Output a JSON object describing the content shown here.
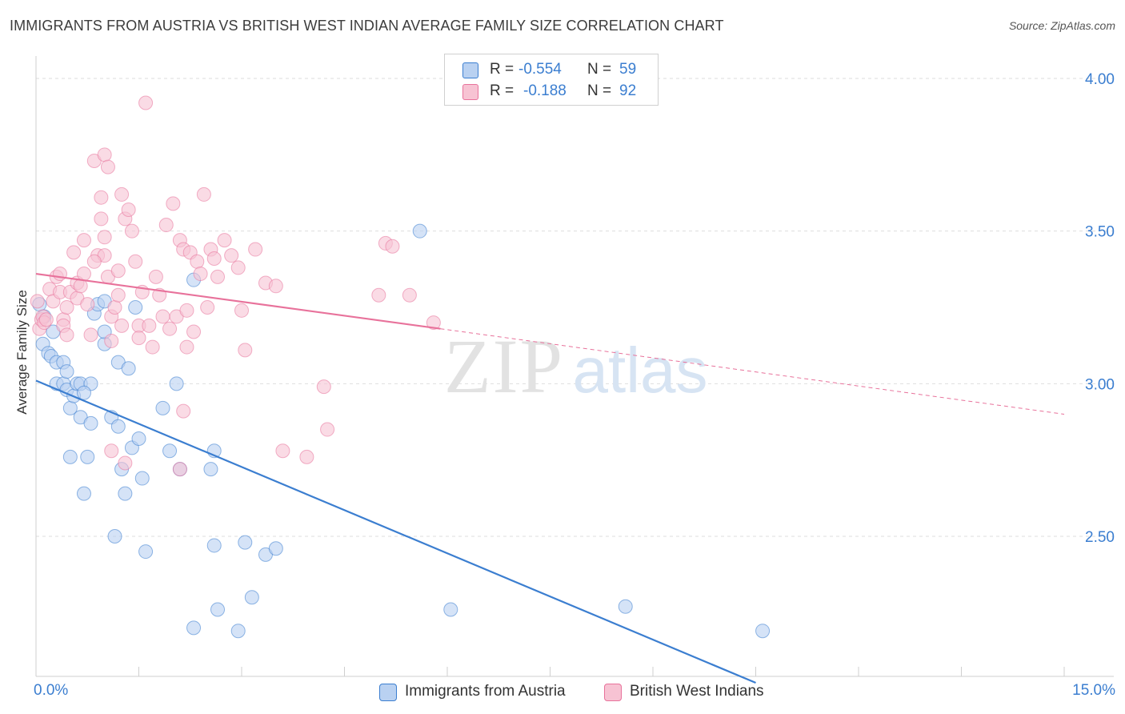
{
  "title": "IMMIGRANTS FROM AUSTRIA VS BRITISH WEST INDIAN AVERAGE FAMILY SIZE CORRELATION CHART",
  "source": "Source: ZipAtlas.com",
  "watermark": {
    "zip": "ZIP",
    "atlas": "atlas"
  },
  "legend": {
    "r_label": "R =",
    "n_label": "N =",
    "series": [
      {
        "r": "-0.554",
        "n": "59",
        "color": "#3b7ed0",
        "fill": "#b9d1f1"
      },
      {
        "r": "-0.188",
        "n": "92",
        "color": "#e8729b",
        "fill": "#f7c3d3"
      }
    ]
  },
  "bottom_legend": [
    "Immigrants from Austria",
    "British West Indians"
  ],
  "x_tick_labels": {
    "min": "0.0%",
    "max": "15.0%"
  },
  "chart_data": {
    "type": "scatter",
    "xlabel": "",
    "ylabel": "Average Family Size",
    "xlim": [
      0,
      15
    ],
    "ylim": [
      2.0,
      4.05
    ],
    "y_ticks": [
      2.5,
      3.0,
      3.5,
      4.0
    ],
    "y_tick_labels": [
      "2.50",
      "3.00",
      "3.50",
      "4.00"
    ],
    "grid": true,
    "series": [
      {
        "name": "Immigrants from Austria",
        "color": "#3b7ed0",
        "fill": "#b9d1f1",
        "trend": {
          "x": [
            0.0,
            10.5
          ],
          "y": [
            3.01,
            2.02
          ]
        },
        "points": [
          [
            0.05,
            3.26
          ],
          [
            0.1,
            3.13
          ],
          [
            0.12,
            3.22
          ],
          [
            0.18,
            3.1
          ],
          [
            0.22,
            3.09
          ],
          [
            0.25,
            3.17
          ],
          [
            0.3,
            3.0
          ],
          [
            0.3,
            3.07
          ],
          [
            0.4,
            3.0
          ],
          [
            0.4,
            3.07
          ],
          [
            0.45,
            3.04
          ],
          [
            0.45,
            2.98
          ],
          [
            0.5,
            2.92
          ],
          [
            0.5,
            2.76
          ],
          [
            0.55,
            2.96
          ],
          [
            0.6,
            3.0
          ],
          [
            0.65,
            3.0
          ],
          [
            0.65,
            2.89
          ],
          [
            0.7,
            2.64
          ],
          [
            0.75,
            2.76
          ],
          [
            0.8,
            2.87
          ],
          [
            0.8,
            3.0
          ],
          [
            0.85,
            3.23
          ],
          [
            0.9,
            3.26
          ],
          [
            1.0,
            3.13
          ],
          [
            1.0,
            3.17
          ],
          [
            1.1,
            2.89
          ],
          [
            1.15,
            2.5
          ],
          [
            1.2,
            3.07
          ],
          [
            1.2,
            2.86
          ],
          [
            1.25,
            2.72
          ],
          [
            1.3,
            2.64
          ],
          [
            1.35,
            3.05
          ],
          [
            1.4,
            2.79
          ],
          [
            1.45,
            3.25
          ],
          [
            1.5,
            2.82
          ],
          [
            1.55,
            2.69
          ],
          [
            1.6,
            2.45
          ],
          [
            1.85,
            2.92
          ],
          [
            1.95,
            2.78
          ],
          [
            2.05,
            3.0
          ],
          [
            2.1,
            2.72
          ],
          [
            2.3,
            3.34
          ],
          [
            2.3,
            2.2
          ],
          [
            2.55,
            2.72
          ],
          [
            2.6,
            2.78
          ],
          [
            2.6,
            2.47
          ],
          [
            2.65,
            2.26
          ],
          [
            2.95,
            2.19
          ],
          [
            3.05,
            2.48
          ],
          [
            3.15,
            2.3
          ],
          [
            3.35,
            2.44
          ],
          [
            3.5,
            2.46
          ],
          [
            5.6,
            3.5
          ],
          [
            6.05,
            2.26
          ],
          [
            8.6,
            2.27
          ],
          [
            10.6,
            2.19
          ],
          [
            1.0,
            3.27
          ],
          [
            0.7,
            2.97
          ]
        ]
      },
      {
        "name": "British West Indians",
        "color": "#e8729b",
        "fill": "#f7c3d3",
        "trend": {
          "x": [
            0.0,
            5.9
          ],
          "y": [
            3.36,
            3.18
          ]
        },
        "trend_ext": {
          "x": [
            5.9,
            15.0
          ],
          "y": [
            3.18,
            2.9
          ]
        },
        "points": [
          [
            0.02,
            3.27
          ],
          [
            0.05,
            3.18
          ],
          [
            0.08,
            3.21
          ],
          [
            0.1,
            3.22
          ],
          [
            0.12,
            3.2
          ],
          [
            0.15,
            3.21
          ],
          [
            0.2,
            3.31
          ],
          [
            0.25,
            3.27
          ],
          [
            0.3,
            3.35
          ],
          [
            0.35,
            3.36
          ],
          [
            0.35,
            3.3
          ],
          [
            0.4,
            3.21
          ],
          [
            0.4,
            3.19
          ],
          [
            0.45,
            3.16
          ],
          [
            0.5,
            3.3
          ],
          [
            0.55,
            3.43
          ],
          [
            0.6,
            3.33
          ],
          [
            0.6,
            3.28
          ],
          [
            0.65,
            3.32
          ],
          [
            0.7,
            3.36
          ],
          [
            0.7,
            3.47
          ],
          [
            0.75,
            3.26
          ],
          [
            0.8,
            3.16
          ],
          [
            0.85,
            3.73
          ],
          [
            0.9,
            3.42
          ],
          [
            0.95,
            3.54
          ],
          [
            0.95,
            3.61
          ],
          [
            1.0,
            3.75
          ],
          [
            1.0,
            3.48
          ],
          [
            1.05,
            3.71
          ],
          [
            1.05,
            3.35
          ],
          [
            1.1,
            3.22
          ],
          [
            1.1,
            3.14
          ],
          [
            1.15,
            3.25
          ],
          [
            1.2,
            3.37
          ],
          [
            1.2,
            3.29
          ],
          [
            1.25,
            3.62
          ],
          [
            1.3,
            3.54
          ],
          [
            1.35,
            3.57
          ],
          [
            1.4,
            3.5
          ],
          [
            1.45,
            3.4
          ],
          [
            1.5,
            3.19
          ],
          [
            1.5,
            3.15
          ],
          [
            1.55,
            3.3
          ],
          [
            1.6,
            3.92
          ],
          [
            1.65,
            3.19
          ],
          [
            1.7,
            3.12
          ],
          [
            1.75,
            3.35
          ],
          [
            1.8,
            3.29
          ],
          [
            1.85,
            3.22
          ],
          [
            1.9,
            3.52
          ],
          [
            1.95,
            3.18
          ],
          [
            2.0,
            3.59
          ],
          [
            2.05,
            3.22
          ],
          [
            2.1,
            3.47
          ],
          [
            2.15,
            3.44
          ],
          [
            2.2,
            3.12
          ],
          [
            2.2,
            3.24
          ],
          [
            2.25,
            3.43
          ],
          [
            2.3,
            3.17
          ],
          [
            2.35,
            3.4
          ],
          [
            2.4,
            3.36
          ],
          [
            2.45,
            3.62
          ],
          [
            2.5,
            3.25
          ],
          [
            2.55,
            3.44
          ],
          [
            2.6,
            3.41
          ],
          [
            2.65,
            3.35
          ],
          [
            2.75,
            3.47
          ],
          [
            2.85,
            3.42
          ],
          [
            2.95,
            3.38
          ],
          [
            3.0,
            3.24
          ],
          [
            3.05,
            3.11
          ],
          [
            3.2,
            3.44
          ],
          [
            3.35,
            3.33
          ],
          [
            3.5,
            3.32
          ],
          [
            3.6,
            2.78
          ],
          [
            3.95,
            2.76
          ],
          [
            4.2,
            2.99
          ],
          [
            4.25,
            2.85
          ],
          [
            5.0,
            3.29
          ],
          [
            5.1,
            3.46
          ],
          [
            5.2,
            3.45
          ],
          [
            5.45,
            3.29
          ],
          [
            5.8,
            3.2
          ],
          [
            1.3,
            2.74
          ],
          [
            2.1,
            2.72
          ],
          [
            2.15,
            2.91
          ],
          [
            1.0,
            3.42
          ],
          [
            0.85,
            3.4
          ],
          [
            0.45,
            3.25
          ],
          [
            1.1,
            2.78
          ],
          [
            1.25,
            3.19
          ]
        ]
      }
    ]
  }
}
